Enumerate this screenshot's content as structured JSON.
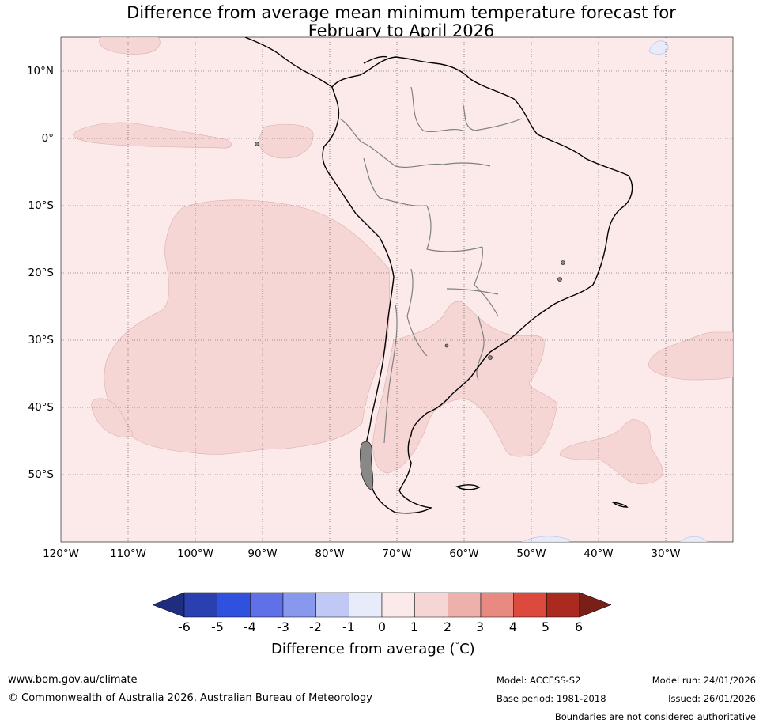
{
  "title": {
    "line1": "Difference from average mean minimum temperature forecast for",
    "line2": "February to April 2026"
  },
  "map": {
    "latitude_labels": [
      "10°N",
      "0°",
      "10°S",
      "20°S",
      "30°S",
      "40°S",
      "50°S"
    ],
    "longitude_labels": [
      "120°W",
      "110°W",
      "100°W",
      "90°W",
      "80°W",
      "70°W",
      "60°W",
      "50°W",
      "40°W",
      "30°W"
    ],
    "colors": {
      "background_anomaly_0_to_1": "#fbeae9",
      "anomaly_1_to_2": "#f5d6d5",
      "anomaly_minus1_to_0": "#e8ebfa",
      "coastline": "#000000",
      "borders": "#808080"
    }
  },
  "colorbar": {
    "ticks": [
      "-6",
      "-5",
      "-4",
      "-3",
      "-2",
      "-1",
      "0",
      "1",
      "2",
      "3",
      "4",
      "5",
      "6"
    ],
    "colors": [
      "#1f2d80",
      "#2a3fb0",
      "#3050e0",
      "#6070e6",
      "#8898ef",
      "#c0c8f5",
      "#e8ebfa",
      "#fbeae9",
      "#f5d6d5",
      "#eeb0ab",
      "#e88a82",
      "#dc4a3e",
      "#aa2a20",
      "#7a1f18"
    ],
    "label": "Difference from average (°C)",
    "label_prefix": "Difference from average (",
    "label_degree": "°",
    "label_unit": "C)"
  },
  "footer": {
    "website": "www.bom.gov.au/climate",
    "copyright": "© Commonwealth of Australia 2026, Australian Bureau of Meteorology",
    "model": "Model: ACCESS-S2",
    "base_period": "Base period: 1981-2018",
    "model_run": "Model run: 24/01/2026",
    "issued": "Issued: 26/01/2026",
    "disclaimer": "Boundaries are not considered authoritative"
  }
}
